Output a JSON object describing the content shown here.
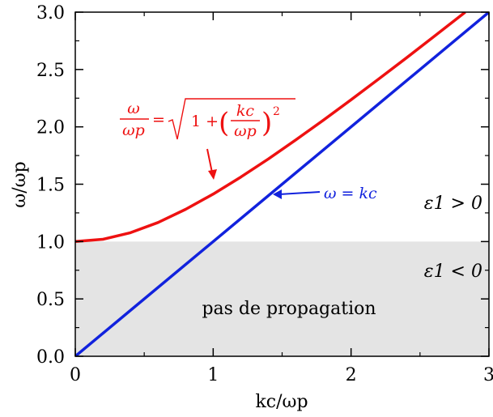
{
  "chart_data": {
    "type": "line",
    "xlabel": "kc/ωp",
    "ylabel": "ω/ωp",
    "xlim": [
      0,
      3
    ],
    "ylim": [
      0,
      3
    ],
    "x_ticks": [
      "0",
      "1",
      "2",
      "3"
    ],
    "y_ticks": [
      "0.0",
      "0.5",
      "1.0",
      "1.5",
      "2.0",
      "2.5",
      "3.0"
    ],
    "grid": false,
    "series": [
      {
        "formula_lhs_num": "ω",
        "formula_lhs_den": "ωp",
        "formula_one": "1 +",
        "formula_kc": "kc",
        "formula_wp": "ωp",
        "formula_exp": "2",
        "color": "#ee1111",
        "x": [
          0,
          0.2,
          0.4,
          0.6,
          0.8,
          1.0,
          1.2,
          1.4,
          1.6,
          1.8,
          2.0,
          2.2,
          2.4,
          2.6,
          2.828
        ],
        "y": [
          1.0,
          1.02,
          1.077,
          1.166,
          1.281,
          1.414,
          1.562,
          1.72,
          1.887,
          2.059,
          2.236,
          2.417,
          2.6,
          2.786,
          3.0
        ]
      },
      {
        "formula": "ω = kc",
        "color": "#1122dd",
        "x": [
          0,
          3
        ],
        "y": [
          0,
          3
        ]
      }
    ],
    "shaded_region": {
      "y_from": 0,
      "y_to": 1,
      "color": "#e4e4e4",
      "label": "pas de propagation"
    },
    "annotations": {
      "eps_above": "ε1 > 0",
      "eps_below": "ε1 < 0"
    }
  }
}
